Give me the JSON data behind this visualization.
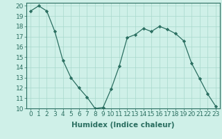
{
  "x": [
    0,
    1,
    2,
    3,
    4,
    5,
    6,
    7,
    8,
    9,
    10,
    11,
    12,
    13,
    14,
    15,
    16,
    17,
    18,
    19,
    20,
    21,
    22,
    23
  ],
  "y": [
    19.5,
    20.0,
    19.5,
    17.5,
    14.7,
    13.0,
    12.0,
    11.1,
    10.0,
    10.1,
    11.9,
    14.1,
    16.9,
    17.2,
    17.8,
    17.5,
    18.0,
    17.7,
    17.3,
    16.6,
    14.4,
    12.9,
    11.4,
    10.2
  ],
  "line_color": "#2a6e60",
  "marker": "D",
  "marker_size": 2.2,
  "bg_color": "#cff0e8",
  "grid_color": "#a8d8cc",
  "xlabel": "Humidex (Indice chaleur)",
  "ylim": [
    10,
    20
  ],
  "xlim": [
    -0.5,
    23.5
  ],
  "yticks": [
    10,
    11,
    12,
    13,
    14,
    15,
    16,
    17,
    18,
    19,
    20
  ],
  "xticks": [
    0,
    1,
    2,
    3,
    4,
    5,
    6,
    7,
    8,
    9,
    10,
    11,
    12,
    13,
    14,
    15,
    16,
    17,
    18,
    19,
    20,
    21,
    22,
    23
  ],
  "xtick_labels": [
    "0",
    "1",
    "2",
    "3",
    "4",
    "5",
    "6",
    "7",
    "8",
    "9",
    "10",
    "11",
    "12",
    "13",
    "14",
    "15",
    "16",
    "17",
    "18",
    "19",
    "20",
    "21",
    "22",
    "23"
  ],
  "xlabel_fontsize": 7.5,
  "tick_fontsize": 6.5,
  "spine_color": "#2a6e60",
  "linewidth": 0.9
}
